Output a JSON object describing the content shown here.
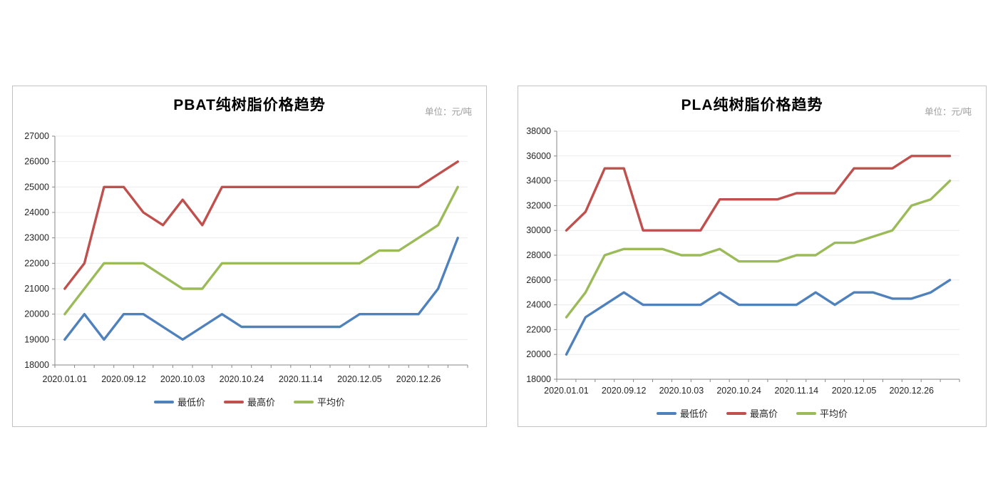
{
  "page": {
    "background": "#ffffff"
  },
  "chart_data": [
    {
      "type": "line",
      "title": "PBAT纯树脂价格趋势",
      "unit_label": "单位：元/吨",
      "n_points": 21,
      "x_tick_labels": [
        "2020.01.01",
        "2020.09.12",
        "2020.10.03",
        "2020.10.24",
        "2020.11.14",
        "2020.12.05",
        "2020.12.26"
      ],
      "x_label_indices": [
        0,
        3,
        6,
        9,
        12,
        15,
        18
      ],
      "ylim": [
        18000,
        27000
      ],
      "y_step": 1000,
      "y_tick_labels": [
        18000,
        19000,
        20000,
        21000,
        22000,
        23000,
        24000,
        25000,
        26000,
        27000
      ],
      "grid": true,
      "legend_position": "bottom",
      "series": [
        {
          "name": "最低价",
          "key": "lowest",
          "color": "#4F81BD",
          "values": [
            19000,
            20000,
            19000,
            20000,
            20000,
            19500,
            19000,
            19500,
            20000,
            19500,
            19500,
            19500,
            19500,
            19500,
            19500,
            20000,
            20000,
            20000,
            20000,
            21000,
            23000
          ]
        },
        {
          "name": "最高价",
          "key": "highest",
          "color": "#C0504D",
          "values": [
            21000,
            22000,
            25000,
            25000,
            24000,
            23500,
            24500,
            23500,
            25000,
            25000,
            25000,
            25000,
            25000,
            25000,
            25000,
            25000,
            25000,
            25000,
            25000,
            25500,
            26000
          ]
        },
        {
          "name": "平均价",
          "key": "average",
          "color": "#9BBB59",
          "values": [
            20000,
            21000,
            22000,
            22000,
            22000,
            21500,
            21000,
            21000,
            22000,
            22000,
            22000,
            22000,
            22000,
            22000,
            22000,
            22000,
            22500,
            22500,
            23000,
            23500,
            25000
          ]
        }
      ]
    },
    {
      "type": "line",
      "title": "PLA纯树脂价格趋势",
      "unit_label": "单位：元/吨",
      "n_points": 21,
      "x_tick_labels": [
        "2020.01.01",
        "2020.09.12",
        "2020.10.03",
        "2020.10.24",
        "2020.11.14",
        "2020.12.05",
        "2020.12.26"
      ],
      "x_label_indices": [
        0,
        3,
        6,
        9,
        12,
        15,
        18
      ],
      "ylim": [
        18000,
        38000
      ],
      "y_step": 2000,
      "y_tick_labels": [
        18000,
        20000,
        22000,
        24000,
        26000,
        28000,
        30000,
        32000,
        34000,
        36000,
        38000
      ],
      "grid": true,
      "legend_position": "bottom",
      "series": [
        {
          "name": "最低价",
          "key": "lowest",
          "color": "#4F81BD",
          "values": [
            20000,
            23000,
            24000,
            25000,
            24000,
            24000,
            24000,
            24000,
            25000,
            24000,
            24000,
            24000,
            24000,
            25000,
            24000,
            25000,
            25000,
            24500,
            24500,
            25000,
            26000
          ]
        },
        {
          "name": "最高价",
          "key": "highest",
          "color": "#C0504D",
          "values": [
            30000,
            31500,
            35000,
            35000,
            30000,
            30000,
            30000,
            30000,
            32500,
            32500,
            32500,
            32500,
            33000,
            33000,
            33000,
            35000,
            35000,
            35000,
            36000,
            36000,
            36000
          ]
        },
        {
          "name": "平均价",
          "key": "average",
          "color": "#9BBB59",
          "values": [
            23000,
            25000,
            28000,
            28500,
            28500,
            28500,
            28000,
            28000,
            28500,
            27500,
            27500,
            27500,
            28000,
            28000,
            29000,
            29000,
            29500,
            30000,
            32000,
            32500,
            34000
          ]
        }
      ]
    }
  ],
  "style": {
    "grid_color": "#ececec",
    "axis_color": "#878787",
    "tick_label_color": "#262626"
  }
}
